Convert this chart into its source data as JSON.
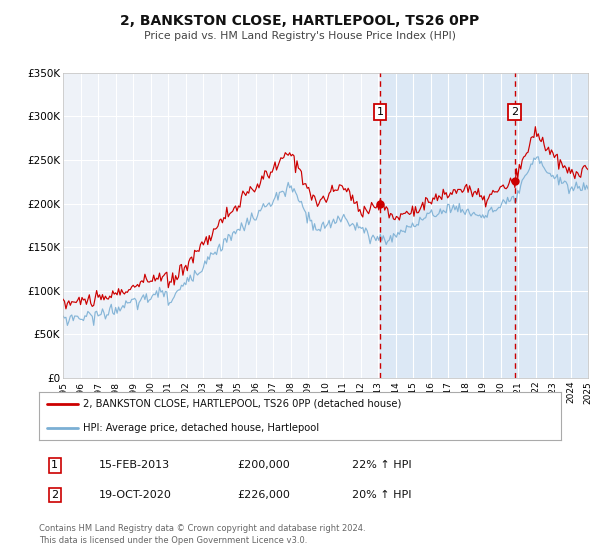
{
  "title": "2, BANKSTON CLOSE, HARTLEPOOL, TS26 0PP",
  "subtitle": "Price paid vs. HM Land Registry's House Price Index (HPI)",
  "background_color": "#ffffff",
  "plot_bg_color": "#eef2f8",
  "grid_color": "#ffffff",
  "red_line_color": "#cc0000",
  "blue_line_color": "#7bafd4",
  "shade_color": "#dce8f5",
  "sale1_date_num": 2013.12,
  "sale1_price": 200000,
  "sale1_label": "1",
  "sale1_date_str": "15-FEB-2013",
  "sale1_pct": "22%",
  "sale2_date_num": 2020.8,
  "sale2_price": 226000,
  "sale2_label": "2",
  "sale2_date_str": "19-OCT-2020",
  "sale2_pct": "20%",
  "ylim": [
    0,
    350000
  ],
  "xlim": [
    1995,
    2025
  ],
  "yticks": [
    0,
    50000,
    100000,
    150000,
    200000,
    250000,
    300000,
    350000
  ],
  "ytick_labels": [
    "£0",
    "£50K",
    "£100K",
    "£150K",
    "£200K",
    "£250K",
    "£300K",
    "£350K"
  ],
  "legend_line1": "2, BANKSTON CLOSE, HARTLEPOOL, TS26 0PP (detached house)",
  "legend_line2": "HPI: Average price, detached house, Hartlepool",
  "footer1": "Contains HM Land Registry data © Crown copyright and database right 2024.",
  "footer2": "This data is licensed under the Open Government Licence v3.0."
}
